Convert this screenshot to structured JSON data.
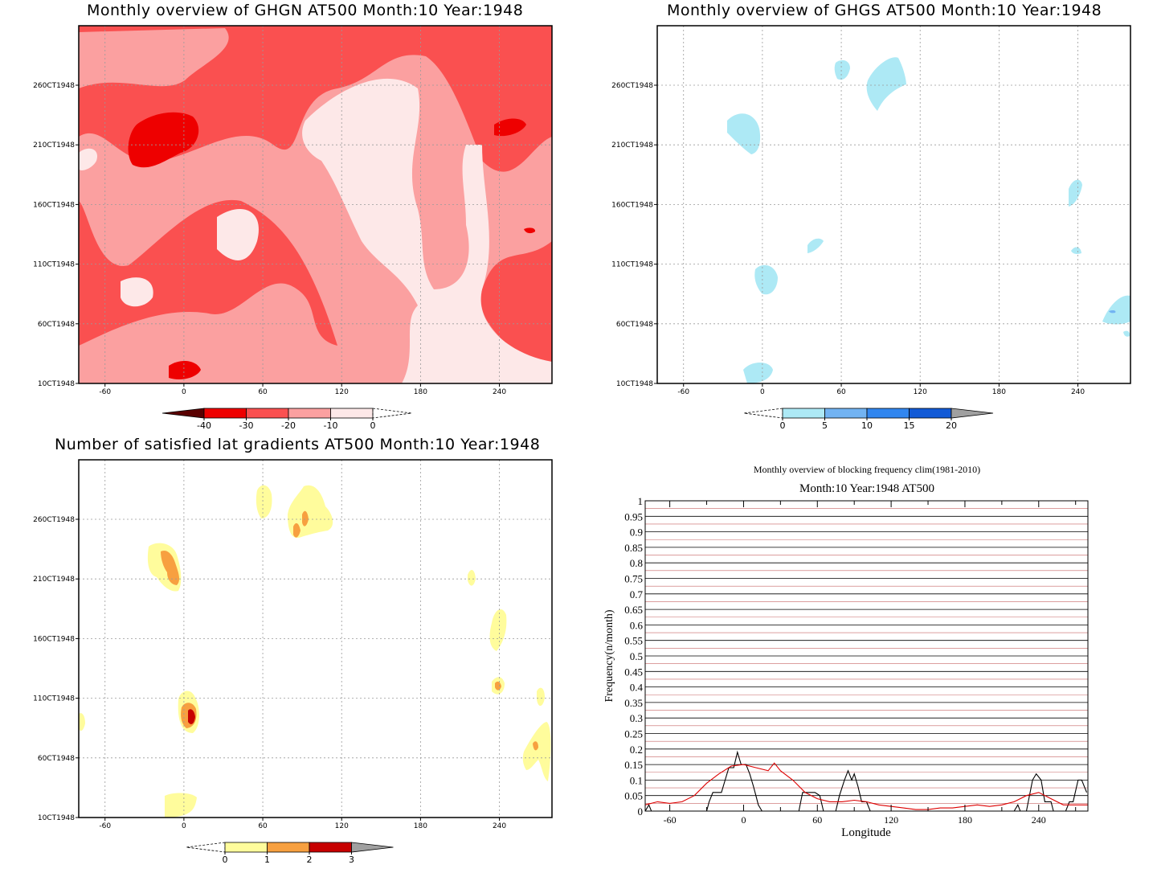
{
  "panels": {
    "ghgn": {
      "title": "Monthly overview of GHGN AT500 Month:10 Year:1948",
      "colorbar": {
        "labels": [
          "-40",
          "-30",
          "-20",
          "-10",
          "0"
        ],
        "colors": [
          "#5a0000",
          "#ee0000",
          "#fa5050",
          "#fba0a0",
          "#fde8e8"
        ]
      }
    },
    "ghgs": {
      "title": "Monthly overview of GHGS AT500 Month:10 Year:1948",
      "colorbar": {
        "labels": [
          "0",
          "5",
          "10",
          "15",
          "20"
        ],
        "colors": [
          "#ade9f5",
          "#72b3f2",
          "#3186ef",
          "#125ad6",
          "#a0a0a0"
        ]
      }
    },
    "grad": {
      "title": "Number of satisfied lat gradients AT500 Month:10 Year:1948",
      "colorbar": {
        "labels": [
          "0",
          "1",
          "2",
          "3"
        ],
        "colors": [
          "#fffc9c",
          "#f7a040",
          "#c70000",
          "#a0a0a0"
        ]
      }
    },
    "freq": {
      "title": "Monthly overview of blocking frequency clim(1981-2010)",
      "subtitle": "Month:10 Year:1948  AT500"
    }
  },
  "map_axes": {
    "x_ticks": [
      "-60",
      "0",
      "60",
      "120",
      "180",
      "240"
    ],
    "y_ticks": [
      "10CT1948",
      "60CT1948",
      "110CT1948",
      "160CT1948",
      "210CT1948",
      "260CT1948"
    ]
  },
  "chart_data": {
    "type": "line",
    "title": "Monthly overview of blocking frequency clim(1981-2010)",
    "subtitle": "Month:10 Year:1948  AT500",
    "xlabel": "Longitude",
    "ylabel": "Frequency(n/month)",
    "xlim": [
      -80,
      280
    ],
    "ylim": [
      0,
      1
    ],
    "x_ticks": [
      "-60",
      "0",
      "60",
      "120",
      "180",
      "240"
    ],
    "y_ticks": [
      "0",
      "0.05",
      "0.1",
      "0.15",
      "0.2",
      "0.25",
      "0.3",
      "0.35",
      "0.4",
      "0.45",
      "0.5",
      "0.55",
      "0.6",
      "0.65",
      "0.7",
      "0.75",
      "0.8",
      "0.85",
      "0.9",
      "0.95",
      "1"
    ],
    "grid": true,
    "series": [
      {
        "color": "#000000",
        "x": [
          -80,
          -77,
          -75,
          -73,
          -70,
          -30,
          -28,
          -25,
          -18,
          -15,
          -12,
          -8,
          -5,
          -2,
          2,
          5,
          8,
          10,
          12,
          15,
          18,
          45,
          48,
          52,
          58,
          62,
          65,
          68,
          75,
          78,
          82,
          85,
          88,
          90,
          93,
          96,
          100,
          103,
          110,
          220,
          223,
          225,
          228,
          230,
          235,
          238,
          242,
          245,
          250,
          252,
          255,
          262,
          265,
          268,
          272,
          275,
          279
        ],
        "y": [
          0,
          0.02,
          0,
          0,
          0,
          0,
          0.03,
          0.06,
          0.06,
          0.1,
          0.14,
          0.14,
          0.19,
          0.15,
          0.15,
          0.12,
          0.08,
          0.05,
          0.02,
          0,
          0,
          0,
          0.06,
          0.06,
          0.06,
          0.05,
          0,
          0,
          0,
          0.05,
          0.1,
          0.13,
          0.1,
          0.12,
          0.08,
          0.03,
          0.03,
          0,
          0,
          0,
          0.02,
          0,
          0,
          0,
          0.1,
          0.12,
          0.1,
          0.03,
          0.03,
          0,
          0,
          0,
          0.03,
          0.03,
          0.1,
          0.1,
          0.06
        ]
      },
      {
        "color": "#dd0000",
        "x": [
          -80,
          -70,
          -60,
          -50,
          -40,
          -30,
          -20,
          -10,
          0,
          10,
          20,
          25,
          30,
          40,
          50,
          60,
          70,
          80,
          90,
          100,
          110,
          120,
          130,
          140,
          150,
          160,
          170,
          180,
          190,
          200,
          210,
          220,
          230,
          240,
          250,
          260,
          270,
          280
        ],
        "y": [
          0.02,
          0.03,
          0.025,
          0.03,
          0.05,
          0.09,
          0.12,
          0.145,
          0.15,
          0.14,
          0.13,
          0.155,
          0.13,
          0.1,
          0.06,
          0.04,
          0.03,
          0.03,
          0.035,
          0.03,
          0.02,
          0.015,
          0.01,
          0.005,
          0.005,
          0.01,
          0.01,
          0.015,
          0.02,
          0.015,
          0.02,
          0.03,
          0.05,
          0.06,
          0.04,
          0.02,
          0.02,
          0.02
        ]
      }
    ]
  }
}
